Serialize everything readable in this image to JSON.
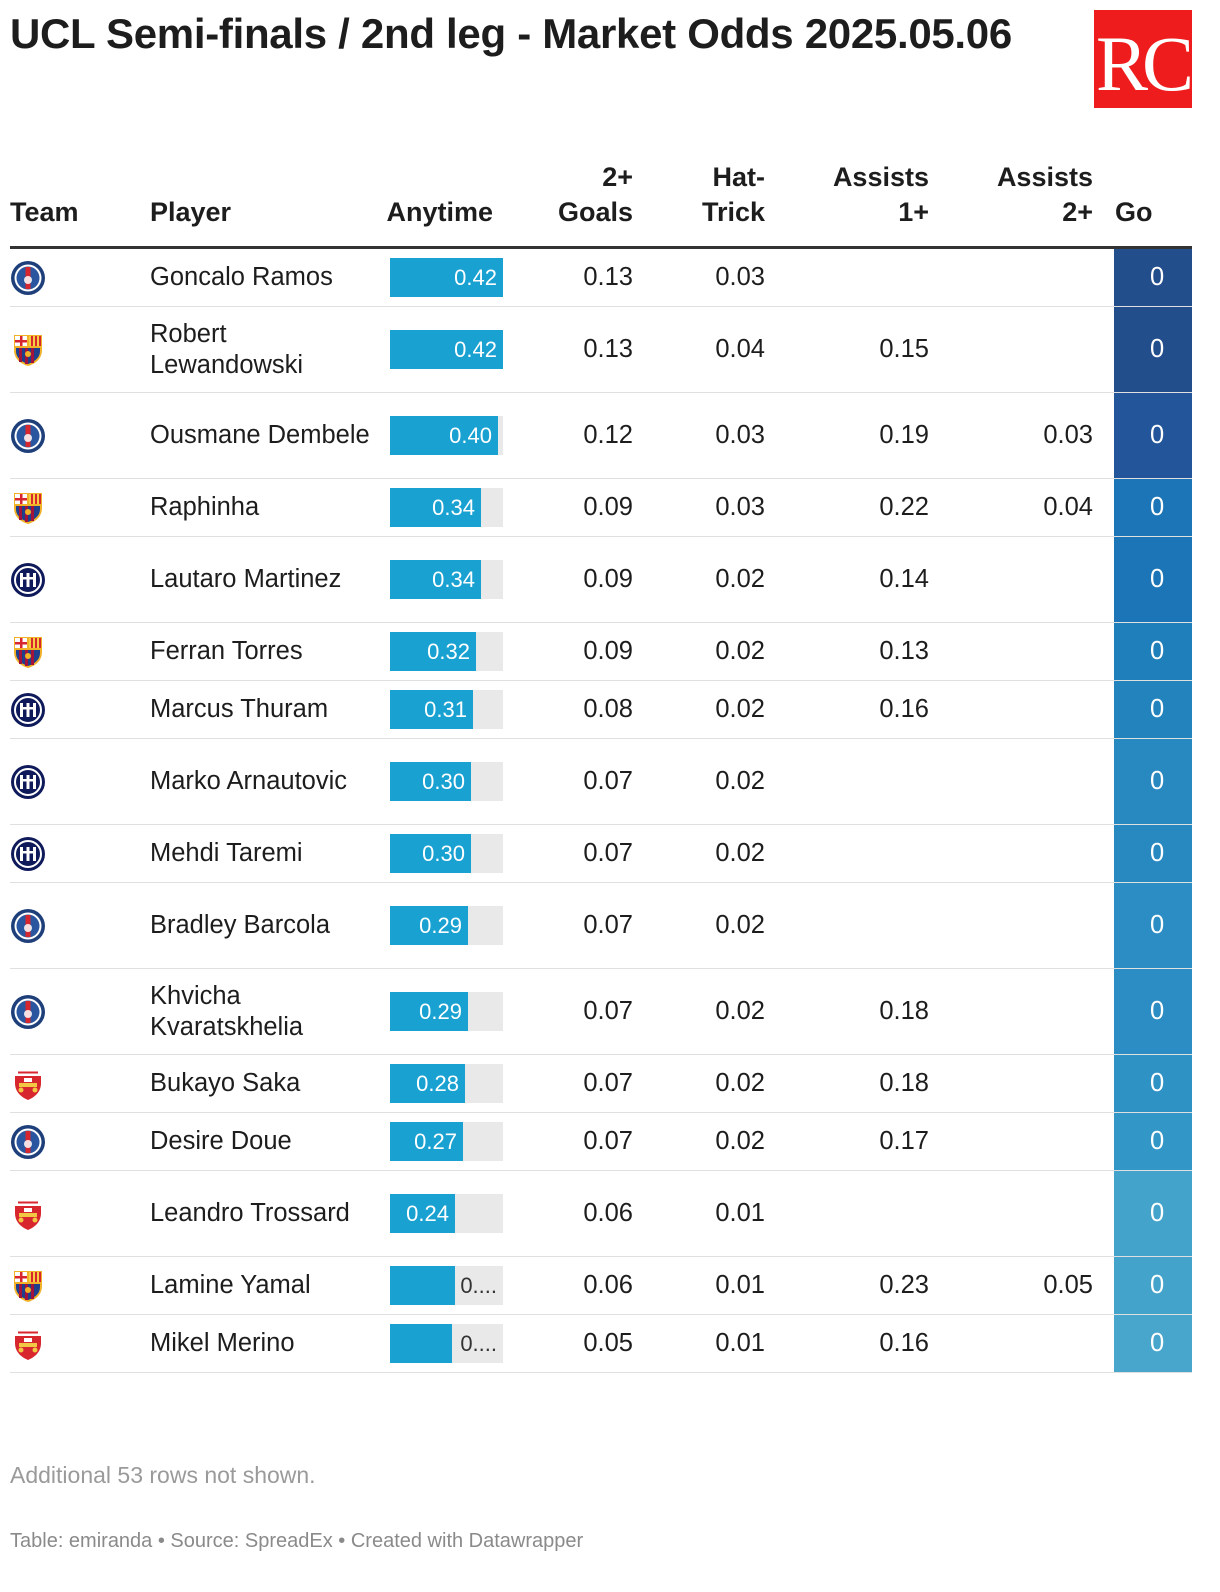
{
  "title": "UCL Semi-finals / 2nd leg - Market Odds 2025.05.06",
  "logo_text": "RC",
  "logo_color": "#ee1c1c",
  "chart_data": {
    "type": "table",
    "columns": [
      "Team",
      "Player",
      "Anytime",
      "2+ Goals",
      "Hat-Trick",
      "Assists 1+",
      "Assists 2+",
      "Go"
    ],
    "header": {
      "team": "Team",
      "player": "Player",
      "anytime": "Anytime",
      "goals2_line1": "2+",
      "goals2_line2": "Goals",
      "hat_line1": "Hat-",
      "hat_line2": "Trick",
      "a1_line1": "Assists",
      "a1_line2": "1+",
      "a2_line1": "Assists",
      "a2_line2": "2+",
      "go": "Go"
    },
    "bar_color": "#18a1d1",
    "rows": [
      {
        "team": "PSG",
        "player": "Goncalo Ramos",
        "anytime": 0.42,
        "anytime_label": "0.42",
        "goals2": "0.13",
        "hat": "0.03",
        "a1": "",
        "a2": "",
        "go": "0",
        "go_color": "#234e8c"
      },
      {
        "team": "Barcelona",
        "player": "Robert Lewandowski",
        "anytime": 0.42,
        "anytime_label": "0.42",
        "goals2": "0.13",
        "hat": "0.04",
        "a1": "0.15",
        "a2": "",
        "go": "0",
        "go_color": "#234e8c"
      },
      {
        "team": "PSG",
        "player": "Ousmane Dembele",
        "anytime": 0.4,
        "anytime_label": "0.40",
        "goals2": "0.12",
        "hat": "0.03",
        "a1": "0.19",
        "a2": "0.03",
        "go": "0",
        "go_color": "#22559a"
      },
      {
        "team": "Barcelona",
        "player": "Raphinha",
        "anytime": 0.34,
        "anytime_label": "0.34",
        "goals2": "0.09",
        "hat": "0.03",
        "a1": "0.22",
        "a2": "0.04",
        "go": "0",
        "go_color": "#1b75b6"
      },
      {
        "team": "Inter",
        "player": "Lautaro Martinez",
        "anytime": 0.34,
        "anytime_label": "0.34",
        "goals2": "0.09",
        "hat": "0.02",
        "a1": "0.14",
        "a2": "",
        "go": "0",
        "go_color": "#1b75b6"
      },
      {
        "team": "Barcelona",
        "player": "Ferran Torres",
        "anytime": 0.32,
        "anytime_label": "0.32",
        "goals2": "0.09",
        "hat": "0.02",
        "a1": "0.13",
        "a2": "",
        "go": "0",
        "go_color": "#1f7fba"
      },
      {
        "team": "Inter",
        "player": "Marcus Thuram",
        "anytime": 0.31,
        "anytime_label": "0.31",
        "goals2": "0.08",
        "hat": "0.02",
        "a1": "0.16",
        "a2": "",
        "go": "0",
        "go_color": "#2283bd"
      },
      {
        "team": "Inter",
        "player": "Marko Arnautovic",
        "anytime": 0.3,
        "anytime_label": "0.30",
        "goals2": "0.07",
        "hat": "0.02",
        "a1": "",
        "a2": "",
        "go": "0",
        "go_color": "#2889c0"
      },
      {
        "team": "Inter",
        "player": "Mehdi Taremi",
        "anytime": 0.3,
        "anytime_label": "0.30",
        "goals2": "0.07",
        "hat": "0.02",
        "a1": "",
        "a2": "",
        "go": "0",
        "go_color": "#2889c0"
      },
      {
        "team": "PSG",
        "player": "Bradley Barcola",
        "anytime": 0.29,
        "anytime_label": "0.29",
        "goals2": "0.07",
        "hat": "0.02",
        "a1": "",
        "a2": "",
        "go": "0",
        "go_color": "#2b8dc3"
      },
      {
        "team": "PSG",
        "player": "Khvicha Kvaratskhelia",
        "anytime": 0.29,
        "anytime_label": "0.29",
        "goals2": "0.07",
        "hat": "0.02",
        "a1": "0.18",
        "a2": "",
        "go": "0",
        "go_color": "#2b8dc3"
      },
      {
        "team": "Arsenal",
        "player": "Bukayo Saka",
        "anytime": 0.28,
        "anytime_label": "0.28",
        "goals2": "0.07",
        "hat": "0.02",
        "a1": "0.18",
        "a2": "",
        "go": "0",
        "go_color": "#2f92c5"
      },
      {
        "team": "PSG",
        "player": "Desire Doue",
        "anytime": 0.27,
        "anytime_label": "0.27",
        "goals2": "0.07",
        "hat": "0.02",
        "a1": "0.17",
        "a2": "",
        "go": "0",
        "go_color": "#3296c7"
      },
      {
        "team": "Arsenal",
        "player": "Leandro Trossard",
        "anytime": 0.24,
        "anytime_label": "0.24",
        "goals2": "0.06",
        "hat": "0.01",
        "a1": "",
        "a2": "",
        "go": "0",
        "go_color": "#44a3cb"
      },
      {
        "team": "Barcelona",
        "player": "Lamine Yamal",
        "anytime": 0.24,
        "anytime_label": "0....",
        "goals2": "0.06",
        "hat": "0.01",
        "a1": "0.23",
        "a2": "0.05",
        "go": "0",
        "go_color": "#44a3cb"
      },
      {
        "team": "Arsenal",
        "player": "Mikel Merino",
        "anytime": 0.23,
        "anytime_label": "0....",
        "goals2": "0.05",
        "hat": "0.01",
        "a1": "0.16",
        "a2": "",
        "go": "0",
        "go_color": "#48a6cc"
      }
    ]
  },
  "note": "Additional 53 rows not shown.",
  "footer": "Table: emiranda • Source: SpreadEx • Created with Datawrapper"
}
